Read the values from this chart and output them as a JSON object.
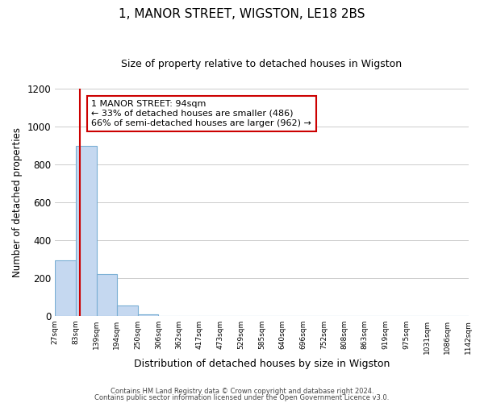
{
  "title": "1, MANOR STREET, WIGSTON, LE18 2BS",
  "subtitle": "Size of property relative to detached houses in Wigston",
  "xlabel": "Distribution of detached houses by size in Wigston",
  "ylabel": "Number of detached properties",
  "bar_edges": [
    27,
    83,
    139,
    194,
    250,
    306,
    362,
    417,
    473,
    529,
    585,
    640,
    696,
    752,
    808,
    863,
    919,
    975,
    1031,
    1086,
    1142
  ],
  "bar_heights": [
    295,
    900,
    220,
    55,
    10,
    0,
    0,
    0,
    0,
    0,
    0,
    0,
    0,
    0,
    0,
    0,
    0,
    0,
    0,
    0
  ],
  "bar_color": "#c5d8f0",
  "bar_edge_color": "#7aafd4",
  "property_line_x": 94,
  "property_line_color": "#cc0000",
  "annotation_line1": "1 MANOR STREET: 94sqm",
  "annotation_line2": "← 33% of detached houses are smaller (486)",
  "annotation_line3": "66% of semi-detached houses are larger (962) →",
  "annotation_box_color": "#ffffff",
  "annotation_box_edge": "#cc0000",
  "ylim": [
    0,
    1200
  ],
  "yticks": [
    0,
    200,
    400,
    600,
    800,
    1000,
    1200
  ],
  "tick_labels": [
    "27sqm",
    "83sqm",
    "139sqm",
    "194sqm",
    "250sqm",
    "306sqm",
    "362sqm",
    "417sqm",
    "473sqm",
    "529sqm",
    "585sqm",
    "640sqm",
    "696sqm",
    "752sqm",
    "808sqm",
    "863sqm",
    "919sqm",
    "975sqm",
    "1031sqm",
    "1086sqm",
    "1142sqm"
  ],
  "footer_line1": "Contains HM Land Registry data © Crown copyright and database right 2024.",
  "footer_line2": "Contains public sector information licensed under the Open Government Licence v3.0.",
  "grid_color": "#cccccc",
  "background_color": "#ffffff",
  "title_fontsize": 11,
  "subtitle_fontsize": 9,
  "ylabel_fontsize": 8.5,
  "xlabel_fontsize": 9,
  "tick_fontsize": 6.5,
  "ytick_fontsize": 8.5,
  "annotation_fontsize": 8,
  "footer_fontsize": 6
}
